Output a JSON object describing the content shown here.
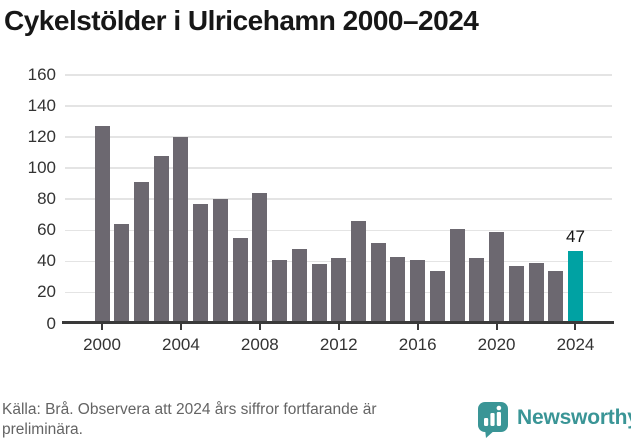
{
  "title": "Cykelstölder i Ulricehamn 2000–2024",
  "chart_data": {
    "type": "bar",
    "title": "Cykelstölder i Ulricehamn 2000–2024",
    "xlabel": "",
    "ylabel": "",
    "categories": [
      2000,
      2001,
      2002,
      2003,
      2004,
      2005,
      2006,
      2007,
      2008,
      2009,
      2010,
      2011,
      2012,
      2013,
      2014,
      2015,
      2016,
      2017,
      2018,
      2019,
      2020,
      2021,
      2022,
      2023,
      2024
    ],
    "values": [
      127,
      64,
      91,
      108,
      120,
      77,
      80,
      55,
      84,
      41,
      48,
      38,
      42,
      66,
      52,
      43,
      41,
      34,
      61,
      42,
      59,
      37,
      39,
      34,
      47
    ],
    "ylim": [
      0,
      160
    ],
    "yticks": [
      0,
      20,
      40,
      60,
      80,
      100,
      120,
      140,
      160
    ],
    "xticks": [
      2000,
      2004,
      2008,
      2012,
      2016,
      2020,
      2024
    ],
    "grid": "horizontal",
    "legend": "none",
    "bar_color": "#6c6870",
    "gridline_color": "#e4e4e4",
    "highlight": {
      "category": 2024,
      "value": 47,
      "label": "47",
      "color": "#00a2a3"
    }
  },
  "source_note": "Källa: Brå. Observera att 2024 års siffror fortfarande är preliminära.",
  "branding": {
    "name": "Newsworthy",
    "color": "#3a9596",
    "icon": "bar-chart-speech-bubble-icon"
  }
}
